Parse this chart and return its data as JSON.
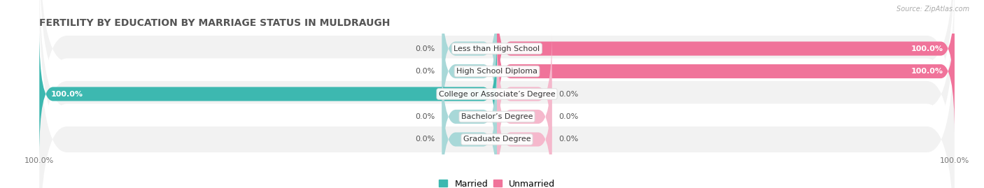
{
  "title": "FERTILITY BY EDUCATION BY MARRIAGE STATUS IN MULDRAUGH",
  "source": "Source: ZipAtlas.com",
  "categories": [
    "Less than High School",
    "High School Diploma",
    "College or Associate’s Degree",
    "Bachelor’s Degree",
    "Graduate Degree"
  ],
  "married": [
    0.0,
    0.0,
    100.0,
    0.0,
    0.0
  ],
  "unmarried": [
    100.0,
    100.0,
    0.0,
    0.0,
    0.0
  ],
  "married_color": "#3db8b0",
  "unmarried_color": "#f0739a",
  "married_color_zero": "#a8d8d8",
  "unmarried_color_zero": "#f5b8cc",
  "background_color": "#ffffff",
  "row_bg_even": "#f2f2f2",
  "row_bg_odd": "#ffffff",
  "title_fontsize": 10,
  "label_fontsize": 8,
  "value_fontsize": 8,
  "tick_fontsize": 8,
  "legend_fontsize": 9,
  "xlim_left": -100,
  "xlim_right": 100,
  "bar_height": 0.62,
  "zero_bar_width": 12
}
